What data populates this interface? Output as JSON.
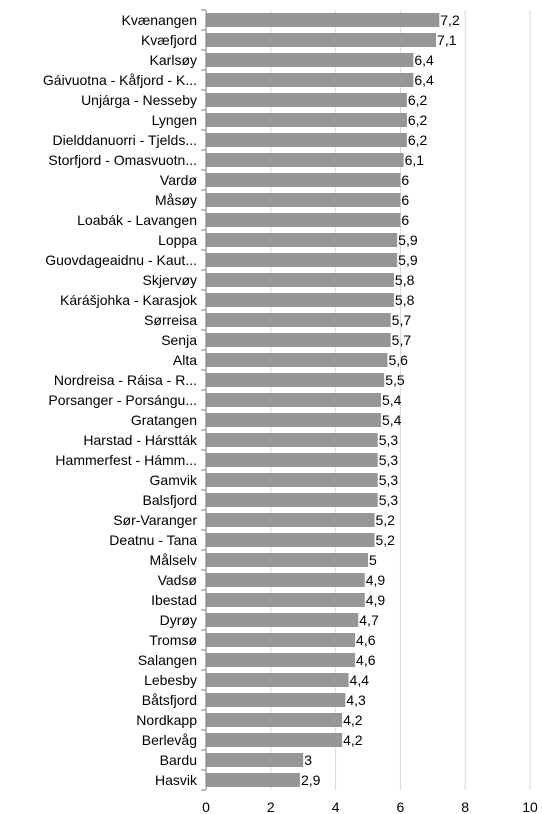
{
  "chart_data": {
    "type": "bar",
    "orientation": "horizontal",
    "categories": [
      "Kvænangen",
      "Kvæfjord",
      "Karlsøy",
      "Gáivuotna - Kåfjord - K...",
      "Unjárga - Nesseby",
      "Lyngen",
      "Dielddanuorri - Tjelds...",
      "Storfjord - Omasvuotn...",
      "Vardø",
      "Måsøy",
      "Loabák - Lavangen",
      "Loppa",
      "Guovdageaidnu - Kaut...",
      "Skjervøy",
      "Kárášjohka - Karasjok",
      "Sørreisa",
      "Senja",
      "Alta",
      "Nordreisa - Ráisa - R...",
      "Porsanger - Porsángu...",
      "Gratangen",
      "Harstad - Hárstták",
      "Hammerfest - Hámm...",
      "Gamvik",
      "Balsfjord",
      "Sør-Varanger",
      "Deatnu - Tana",
      "Målselv",
      "Vadsø",
      "Ibestad",
      "Dyrøy",
      "Tromsø",
      "Salangen",
      "Lebesby",
      "Båtsfjord",
      "Nordkapp",
      "Berlevåg",
      "Bardu",
      "Hasvik"
    ],
    "values": [
      7.2,
      7.1,
      6.4,
      6.4,
      6.2,
      6.2,
      6.2,
      6.1,
      6,
      6,
      6,
      5.9,
      5.9,
      5.8,
      5.8,
      5.7,
      5.7,
      5.6,
      5.5,
      5.4,
      5.4,
      5.3,
      5.3,
      5.3,
      5.3,
      5.2,
      5.2,
      5,
      4.9,
      4.9,
      4.7,
      4.6,
      4.6,
      4.4,
      4.3,
      4.2,
      4.2,
      3,
      2.9
    ],
    "value_labels": [
      "7,2",
      "7,1",
      "6,4",
      "6,4",
      "6,2",
      "6,2",
      "6,2",
      "6,1",
      "6",
      "6",
      "6",
      "5,9",
      "5,9",
      "5,8",
      "5,8",
      "5,7",
      "5,7",
      "5,6",
      "5,5",
      "5,4",
      "5,4",
      "5,3",
      "5,3",
      "5,3",
      "5,3",
      "5,2",
      "5,2",
      "5",
      "4,9",
      "4,9",
      "4,7",
      "4,6",
      "4,6",
      "4,4",
      "4,3",
      "4,2",
      "4,2",
      "3",
      "2,9"
    ],
    "xlim": [
      0,
      10
    ],
    "xticks": [
      0,
      2,
      4,
      6,
      8,
      10
    ],
    "xtick_labels": [
      "0",
      "2",
      "4",
      "6",
      "8",
      "10"
    ],
    "grid": true,
    "legend": "none",
    "bar_color": "#969696",
    "grid_color": "#d9d9d9",
    "axis_color": "#808080",
    "text_color": "#000000"
  }
}
